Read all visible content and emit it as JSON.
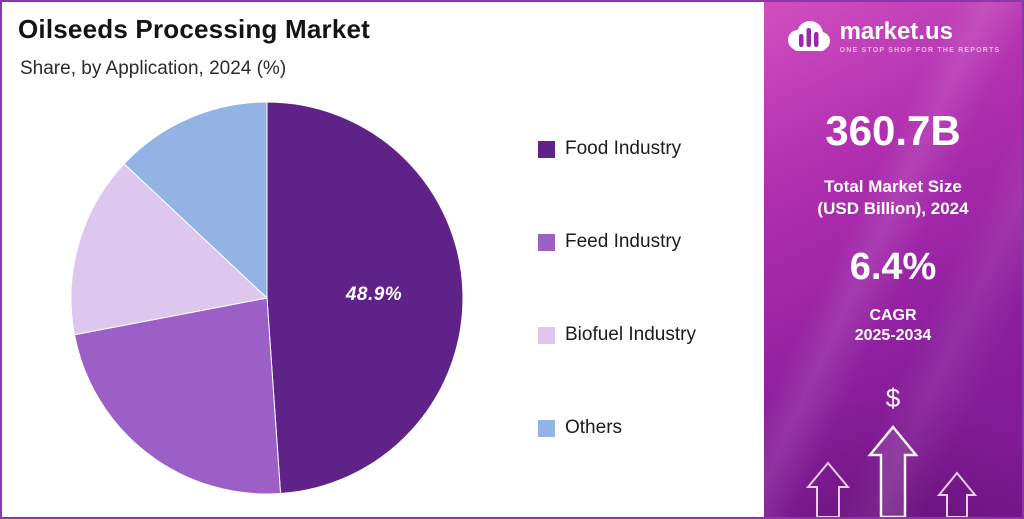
{
  "header": {
    "title": "Oilseeds Processing Market",
    "subtitle": "Share, by Application, 2024 (%)"
  },
  "chart_data": {
    "type": "pie",
    "title": "Oilseeds Processing Market",
    "subtitle": "Share, by Application, 2024 (%)",
    "unit": "%",
    "categories": [
      "Food Industry",
      "Feed Industry",
      "Biofuel Industry",
      "Others"
    ],
    "values": [
      48.9,
      23.1,
      15.0,
      13.0
    ],
    "colors": [
      "#5e2288",
      "#9c5ec7",
      "#ddc7ef",
      "#93b3e4"
    ],
    "data_label": "48.9%",
    "legend_position": "right",
    "start_angle_deg": -90
  },
  "panel": {
    "brand_name": "market.us",
    "brand_tagline": "ONE STOP SHOP FOR THE REPORTS",
    "market_size_value": "360.7B",
    "market_size_label_line1": "Total Market Size",
    "market_size_label_line2": "(USD Billion), 2024",
    "cagr_value": "6.4%",
    "cagr_label_line1": "CAGR",
    "cagr_label_line2": "2025-2034",
    "dollar_symbol": "$",
    "colors": {
      "gradient_top": "#d14fc0",
      "gradient_bottom": "#7a1892",
      "tagline": "#f3b6e3"
    }
  }
}
